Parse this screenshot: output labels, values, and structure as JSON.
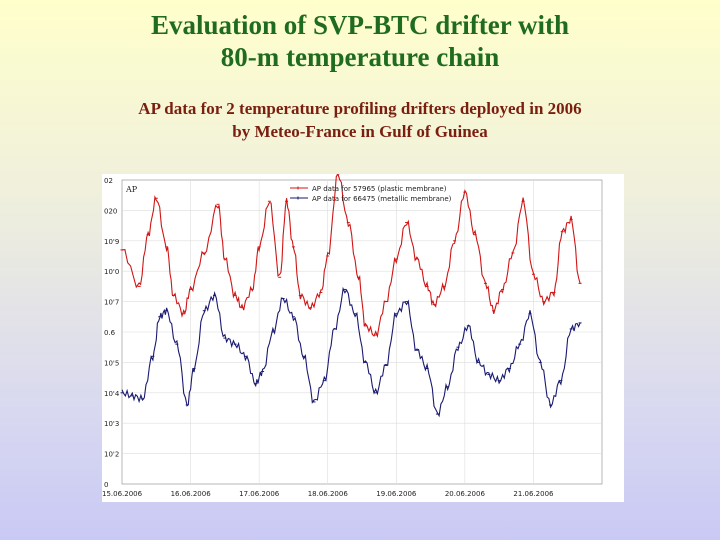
{
  "slide": {
    "title_line1": "Evaluation of SVP-BTC drifter with",
    "title_line2": "80-m temperature chain",
    "subtitle_line1": "AP data for 2 temperature profiling drifters deployed in 2006",
    "subtitle_line2": "by Meteo-France in Gulf of Guinea"
  },
  "colors": {
    "title": "#1f6b1f",
    "subtitle": "#7a1f10",
    "series_red": "#d01515",
    "series_blue": "#1a1a70"
  },
  "chart_data": {
    "type": "line",
    "corner_label": "AP",
    "xlabels": [
      "15.06.2006",
      "16.06.2006",
      "17.06.2006",
      "18.06.2006",
      "19.06.2006",
      "20.06.2006",
      "21.06.2006"
    ],
    "ylabels": [
      "02",
      "020",
      "10'9",
      "10'0",
      "10'7",
      "0.6",
      "10'5",
      "10'4",
      "10'3",
      "10'2",
      "0"
    ],
    "ylim": [
      1010.0,
      1020.0
    ],
    "xlim": [
      0,
      7
    ],
    "grid": true,
    "legend_position": "top-right",
    "series": [
      {
        "name": "AP data for 57965 (plastic membrane)",
        "color": "#d01515",
        "x": [
          0,
          0.25,
          0.38,
          0.5,
          0.65,
          0.75,
          0.9,
          1.0,
          1.2,
          1.4,
          1.5,
          1.65,
          1.75,
          1.9,
          2.0,
          2.15,
          2.3,
          2.4,
          2.5,
          2.6,
          2.75,
          2.9,
          3.0,
          3.15,
          3.3,
          3.45,
          3.55,
          3.7,
          3.85,
          4.0,
          4.15,
          4.3,
          4.45,
          4.55,
          4.7,
          4.85,
          5.0,
          5.15,
          5.3,
          5.42,
          5.55,
          5.7,
          5.85,
          6.0,
          6.15,
          6.3,
          6.42,
          6.55,
          6.68
        ],
        "values": [
          1017.7,
          1016.5,
          1018.2,
          1019.4,
          1017.8,
          1016.2,
          1015.6,
          1016.4,
          1017.6,
          1019.2,
          1017.4,
          1016.2,
          1015.8,
          1016.4,
          1017.8,
          1019.3,
          1016.8,
          1019.3,
          1017.8,
          1016.2,
          1015.8,
          1016.3,
          1017.5,
          1020.2,
          1018.6,
          1016.8,
          1015.2,
          1014.9,
          1016.0,
          1017.4,
          1018.6,
          1017.4,
          1016.5,
          1015.9,
          1016.5,
          1018.0,
          1019.6,
          1018.2,
          1016.6,
          1015.7,
          1016.4,
          1017.6,
          1019.3,
          1016.9,
          1016.0,
          1016.3,
          1018.3,
          1018.7,
          1016.6
        ]
      },
      {
        "name": "AP data for 66475 (metallic membrane)",
        "color": "#1a1a70",
        "x": [
          0,
          0.15,
          0.3,
          0.45,
          0.55,
          0.65,
          0.8,
          0.95,
          1.05,
          1.2,
          1.35,
          1.5,
          1.65,
          1.8,
          1.95,
          2.05,
          2.2,
          2.35,
          2.5,
          2.65,
          2.8,
          2.95,
          3.1,
          3.25,
          3.4,
          3.55,
          3.7,
          3.85,
          4.0,
          4.15,
          4.3,
          4.45,
          4.6,
          4.75,
          4.9,
          5.05,
          5.2,
          5.35,
          5.5,
          5.65,
          5.8,
          5.95,
          6.1,
          6.25,
          6.4,
          6.55,
          6.68
        ],
        "values": [
          1013.0,
          1012.9,
          1012.8,
          1014.2,
          1015.5,
          1015.7,
          1014.6,
          1012.6,
          1013.8,
          1015.7,
          1016.2,
          1014.8,
          1014.6,
          1014.2,
          1013.3,
          1013.7,
          1015.0,
          1016.1,
          1015.5,
          1014.2,
          1012.7,
          1013.4,
          1015.1,
          1016.4,
          1015.6,
          1014.0,
          1013.0,
          1013.9,
          1015.6,
          1016.0,
          1014.4,
          1013.8,
          1012.3,
          1013.2,
          1014.5,
          1015.2,
          1014.0,
          1013.6,
          1013.4,
          1013.8,
          1014.6,
          1015.6,
          1014.0,
          1012.6,
          1013.4,
          1015.1,
          1015.3
        ]
      }
    ]
  }
}
